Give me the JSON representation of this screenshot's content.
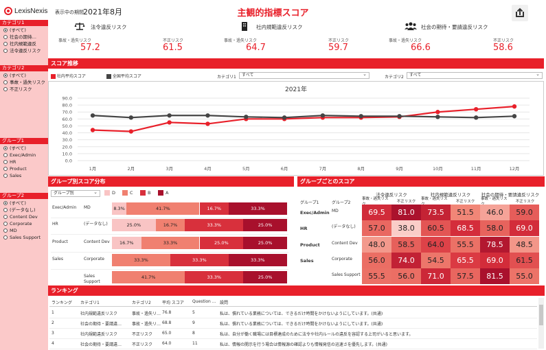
{
  "header": {
    "logo_text": "LexisNexis",
    "period_label": "表示中の期間",
    "period_value": "2021年8月",
    "title": "主観的指標スコア"
  },
  "sidebar": {
    "filters": [
      {
        "name": "カテゴリ1",
        "options": [
          "(すべて)",
          "社会の期待…",
          "社内規範違反",
          "法令違反リスク"
        ],
        "selected": 0
      },
      {
        "name": "カテゴリ2",
        "options": [
          "(すべて)",
          "事故・過失リスク",
          "不正リスク"
        ],
        "selected": 0
      },
      {
        "name": "グループ1",
        "options": [
          "(すべて)",
          "Exec/Admin",
          "HR",
          "Product",
          "Sales"
        ],
        "selected": 0
      },
      {
        "name": "グループ2",
        "options": [
          "(すべて)",
          "(データなし)",
          "Content Dev",
          "Corporate",
          "MD",
          "Sales Support"
        ],
        "selected": 0
      }
    ]
  },
  "kpis": [
    {
      "icon": "scales-icon",
      "title": "法令違反リスク",
      "sub1": "事故・過失リスク",
      "val1": "57.2",
      "sub2": "不正リスク",
      "val2": "61.5"
    },
    {
      "icon": "building-icon",
      "title": "社内規範違反リスク",
      "sub1": "事故・過失リスク",
      "val1": "64.7",
      "sub2": "不正リスク",
      "val2": "59.7"
    },
    {
      "icon": "people-icon",
      "title": "社会の期待・要請違反リスク",
      "sub1": "事故・過失リスク",
      "val1": "66.6",
      "sub2": "不正リスク",
      "val2": "58.6"
    }
  ],
  "trend": {
    "section_title": "スコア推移",
    "legend": [
      "社内平均スコア",
      "全国平均スコア"
    ],
    "cat1_label": "カテゴリ1",
    "cat1_value": "すべて",
    "cat2_label": "カテゴリ2",
    "cat2_value": "すべて"
  },
  "chart_data": {
    "type": "line",
    "title": "2021年",
    "categories": [
      "1月",
      "2月",
      "3月",
      "4月",
      "5月",
      "6月",
      "7月",
      "8月",
      "9月",
      "10月",
      "11月",
      "12月"
    ],
    "series": [
      {
        "name": "社内平均スコア",
        "color": "#e8202a",
        "values": [
          44,
          42,
          55,
          53,
          60,
          60,
          62,
          62,
          63,
          70,
          74,
          78
        ]
      },
      {
        "name": "全国平均スコア",
        "color": "#444444",
        "values": [
          65,
          62,
          65,
          65,
          63,
          62,
          65,
          64,
          64,
          63,
          62,
          64
        ]
      }
    ],
    "ylim": [
      0,
      90
    ],
    "yticks": [
      "0.0",
      "10.0",
      "20.0",
      "30.0",
      "40.0",
      "50.0",
      "60.0",
      "70.0",
      "80.0",
      "90.0"
    ],
    "grid": true
  },
  "dist": {
    "section_title": "グループ別スコア分布",
    "select_value": "グループ別",
    "legend": [
      {
        "label": "D",
        "color": "#f9c4c4"
      },
      {
        "label": "C",
        "color": "#f08070"
      },
      {
        "label": "B",
        "color": "#d8303c"
      },
      {
        "label": "A",
        "color": "#a8102c"
      }
    ],
    "rows": [
      {
        "g1": "Exec/Admin",
        "g2": "MD",
        "segs": [
          8.3,
          41.7,
          16.7,
          33.3
        ],
        "labels": [
          "8.3%",
          "41.7%",
          "16.7%",
          "33.3%"
        ]
      },
      {
        "g1": "HR",
        "g2": "(データなし)",
        "segs": [
          25,
          16.7,
          33.3,
          25
        ],
        "labels": [
          "25.0%",
          "16.7%",
          "33.3%",
          "25.0%"
        ]
      },
      {
        "g1": "Product",
        "g2": "Content Dev",
        "segs": [
          16.7,
          33.3,
          25,
          25
        ],
        "labels": [
          "16.7%",
          "33.3%",
          "25.0%",
          "25.0%"
        ]
      },
      {
        "g1": "Sales",
        "g2": "Corporate",
        "segs": [
          0,
          33.3,
          33.3,
          33.3
        ],
        "labels": [
          "",
          "33.3%",
          "33.3%",
          "33.3%"
        ]
      },
      {
        "g1": "",
        "g2": "Sales Support",
        "segs": [
          0,
          41.7,
          33.3,
          25
        ],
        "labels": [
          "",
          "41.7%",
          "33.3%",
          "25.0%"
        ]
      }
    ]
  },
  "groupscore": {
    "section_title": "グループごとのスコア",
    "col_groups": [
      "法令違反リスク",
      "社内規範違反リスク",
      "社会の期待・要請違反リスク"
    ],
    "sub_cols": [
      "事故・過失リスク",
      "不正リスク"
    ],
    "g1_label": "グループ1",
    "g2_label": "グループ2",
    "rows": [
      {
        "g1": "Exec/Admin",
        "g2": "MD",
        "vals": [
          "69.5",
          "81.0",
          "73.5",
          "51.5",
          "46.0",
          "59.0"
        ]
      },
      {
        "g1": "HR",
        "g2": "(データなし)",
        "vals": [
          "57.0",
          "38.0",
          "60.5",
          "68.5",
          "58.0",
          "69.0"
        ]
      },
      {
        "g1": "Product",
        "g2": "Content Dev",
        "vals": [
          "48.0",
          "58.5",
          "64.0",
          "55.5",
          "78.5",
          "48.5"
        ]
      },
      {
        "g1": "Sales",
        "g2": "Corporate",
        "vals": [
          "56.0",
          "74.0",
          "54.5",
          "65.5",
          "69.0",
          "61.5"
        ]
      },
      {
        "g1": "",
        "g2": "Sales Support",
        "vals": [
          "55.5",
          "56.0",
          "71.0",
          "57.5",
          "81.5",
          "55.0"
        ]
      }
    ]
  },
  "ranking": {
    "section_title": "ランキング",
    "headers": [
      "ランキング",
      "カテゴリ1",
      "カテゴリ2",
      "平均 スコア",
      "Question …",
      "設問"
    ],
    "rows": [
      [
        "1",
        "社内規範違反リスク",
        "事故・過失リ…",
        "76.8",
        "5",
        "私は、慣れている業務については、できるだけ時間をかけないようにしています。(共通)"
      ],
      [
        "2",
        "社会の期待・要請違…",
        "事故・過失リ…",
        "68.8",
        "9",
        "私は、慣れている業務については、できるだけ時間をかけないようにしています。(共通)"
      ],
      [
        "3",
        "社内規範違反リスク",
        "不正リスク",
        "65.0",
        "8",
        "私は、自分が働く職場には目標達成のために法令や社内ルールの違反を容認する上司がいると思います。"
      ],
      [
        "4",
        "社会の期待・要請違…",
        "不正リスク",
        "64.0",
        "11",
        "私は、情報の開示を行う場合は情報源の確認よりも情報発信の迅速さを優先します。(共通)"
      ]
    ]
  }
}
